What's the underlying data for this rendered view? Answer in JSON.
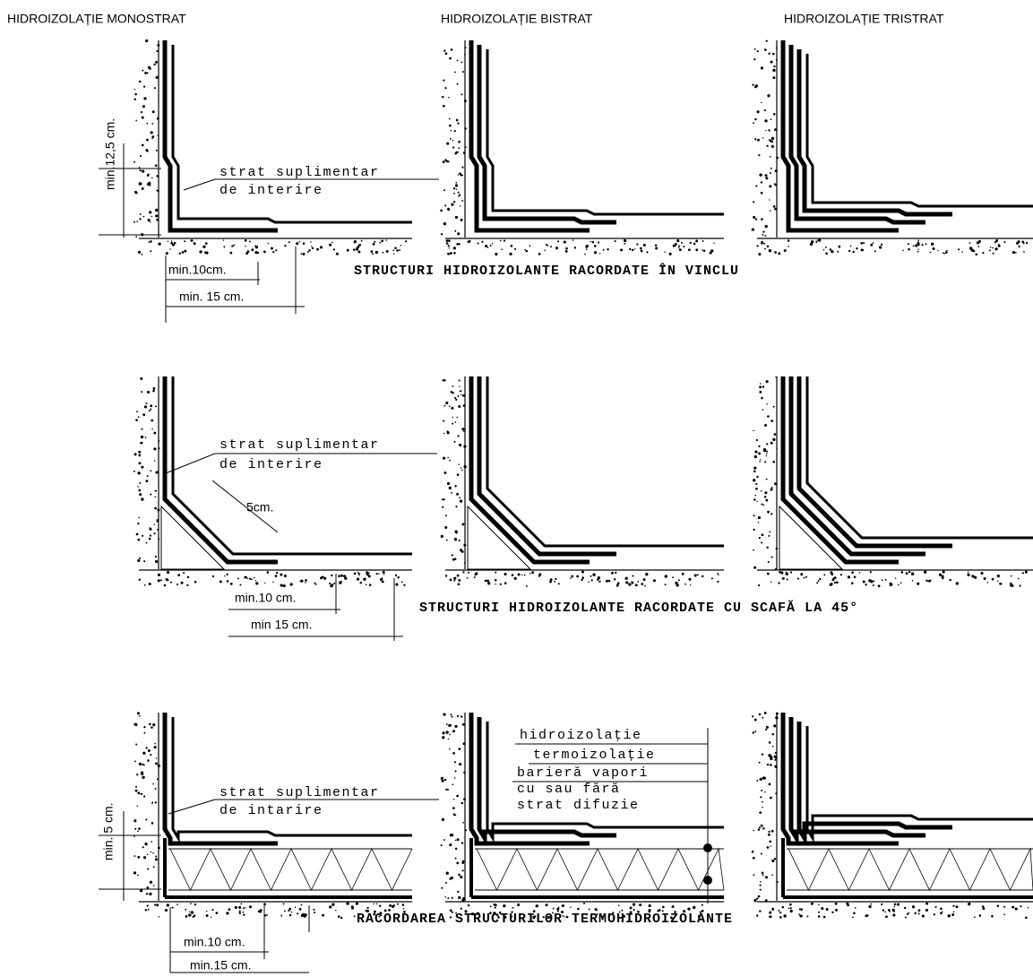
{
  "headers": [
    "HIDROIZOLAȚIE MONOSTRAT",
    "HIDROIZOLAȚIE BISTRAT",
    "HIDROIZOLAȚIE TRISTRAT"
  ],
  "rows": [
    {
      "title": "STRUCTURI HIDROIZOLANTE RACORDATE ÎN VINCLU",
      "labels": [
        "strat suplimentar",
        "de interire",
        "min.12,5 cm.",
        "min.10cm.",
        "min. 15 cm."
      ]
    },
    {
      "title": "STRUCTURI HIDROIZOLANTE RACORDATE CU SCAFĂ LA 45°",
      "labels": [
        "strat suplimentar",
        "de interire",
        "5cm.",
        "min.10 cm.",
        "min 15 cm."
      ]
    },
    {
      "title": "RACORDAREA STRUCTURILOR TERMOHIDROIZOLANTE",
      "labels": [
        "strat suplimentar",
        "de intarire",
        "min. 5 cm.",
        "min.10 cm.",
        "min.15 cm."
      ],
      "layers": [
        "hidroizolație",
        "termoizolație",
        "barieră vapori",
        "cu sau fără",
        "strat difuzie"
      ]
    }
  ]
}
